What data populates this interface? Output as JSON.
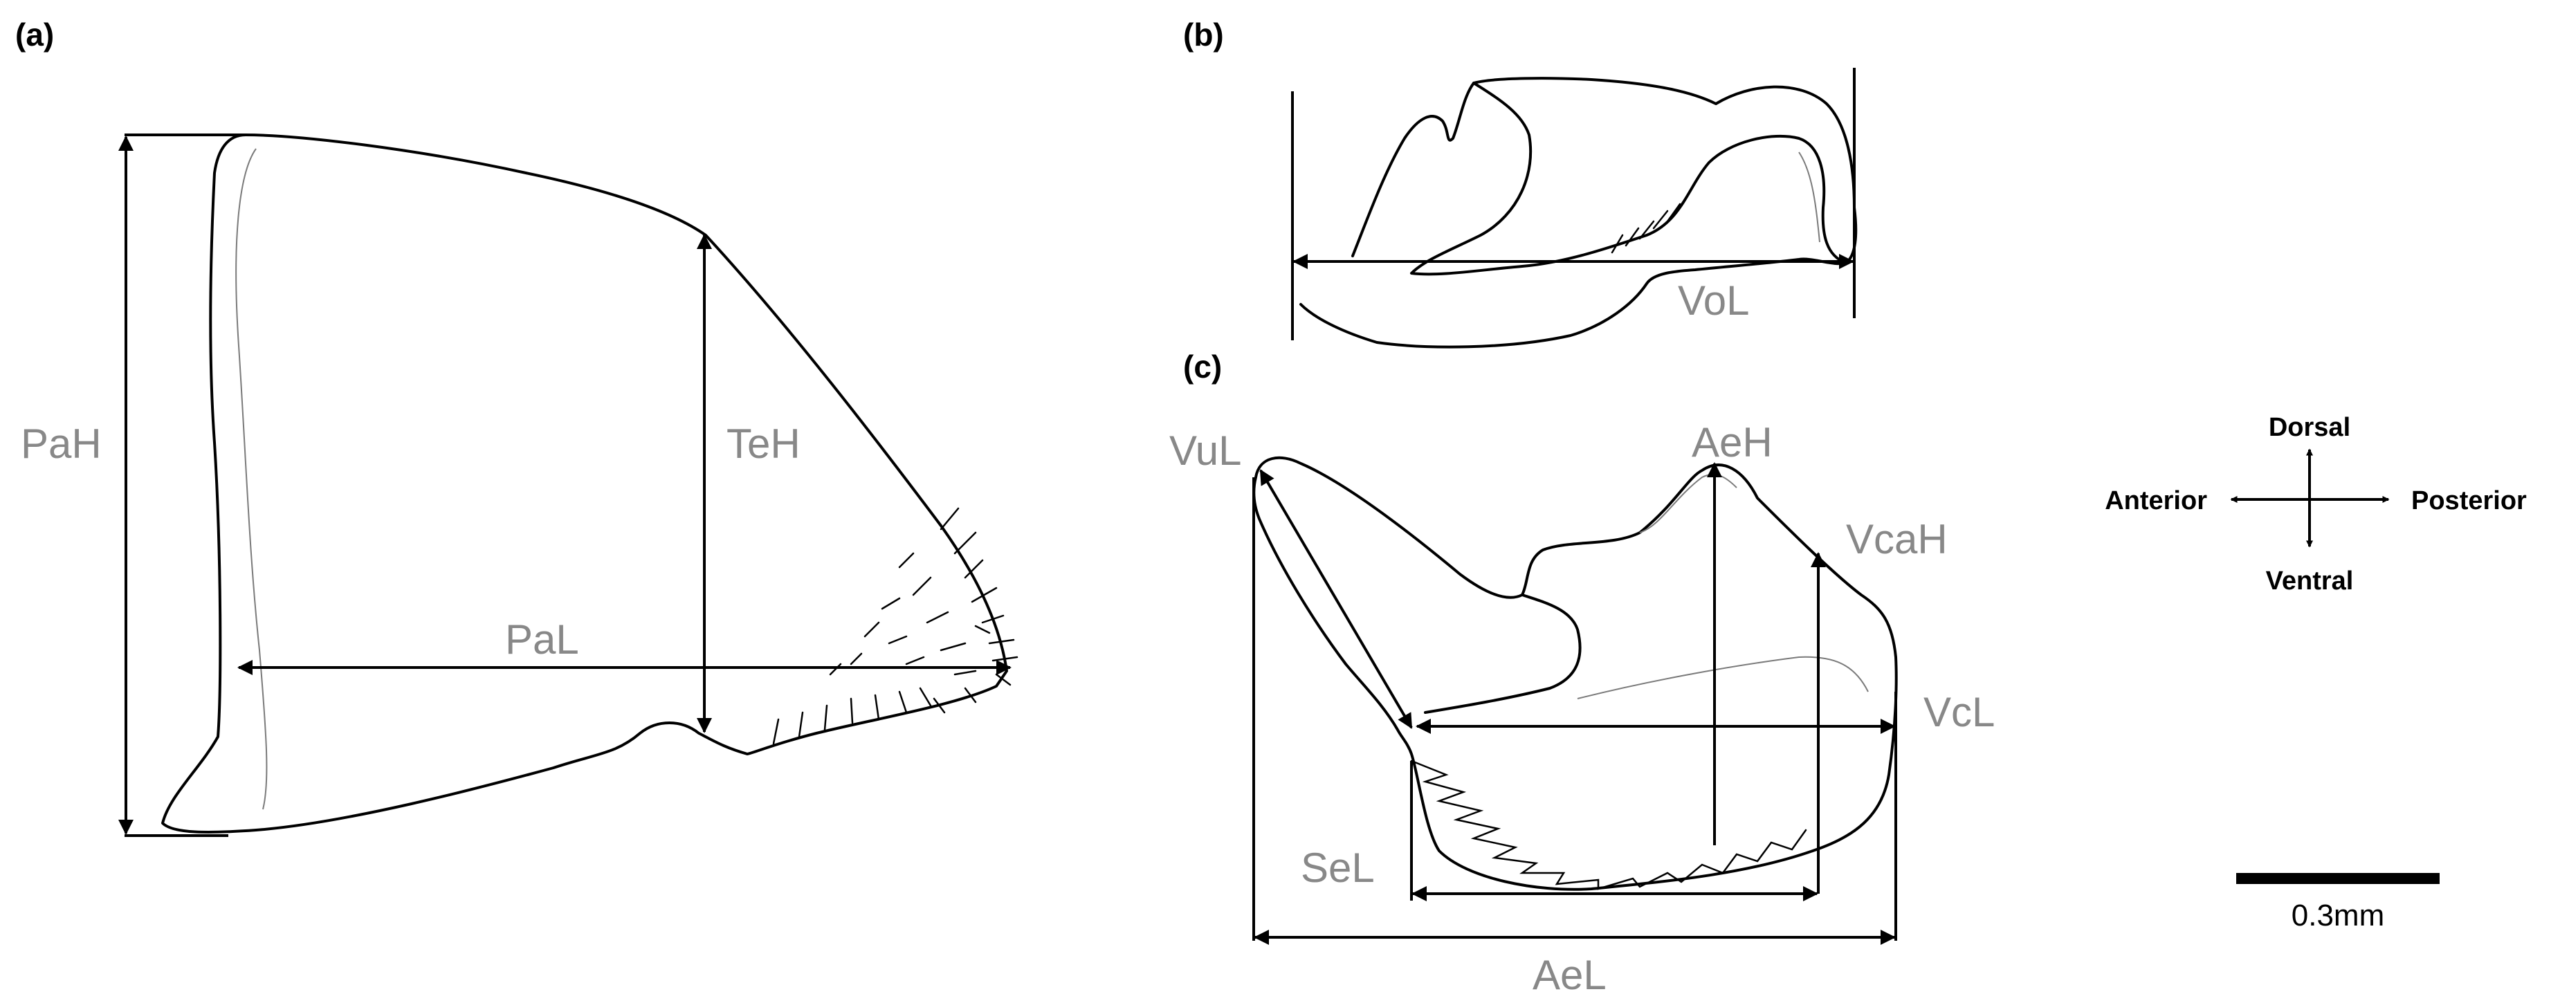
{
  "panels": {
    "a": {
      "label": "(a)",
      "measures": {
        "pah": "PaH",
        "teh": "TeH",
        "pal": "PaL"
      }
    },
    "b": {
      "label": "(b)",
      "measures": {
        "vol": "VoL"
      }
    },
    "c": {
      "label": "(c)",
      "measures": {
        "vul": "VuL",
        "aeh": "AeH",
        "vcah": "VcaH",
        "vcl": "VcL",
        "sel": "SeL",
        "ael": "AeL"
      }
    }
  },
  "orientation": {
    "dorsal": "Dorsal",
    "ventral": "Ventral",
    "anterior": "Anterior",
    "posterior": "Posterior"
  },
  "scale_bar": {
    "label": "0.3mm"
  },
  "colors": {
    "outline": "#000000",
    "measurement_label": "#888888"
  }
}
